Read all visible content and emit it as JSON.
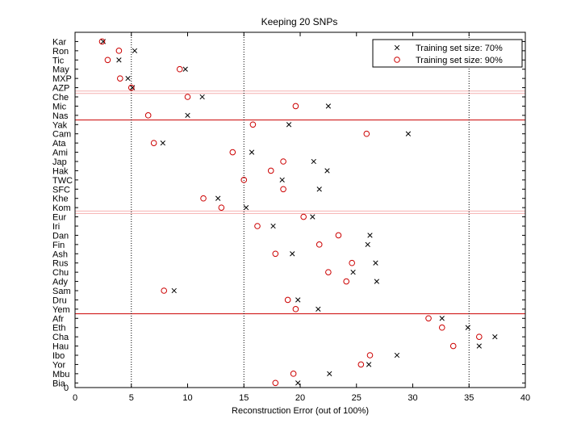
{
  "chart_data": {
    "type": "scatter",
    "title": "Keeping 20 SNPs",
    "xlabel": "Reconstruction Error (out of 100%)",
    "ylabel": "",
    "xlim": [
      0,
      40
    ],
    "xticks": [
      "0",
      "5",
      "10",
      "15",
      "20",
      "25",
      "30",
      "35",
      "40"
    ],
    "ytick_bottom": "0",
    "categories": [
      "Kar",
      "Ron",
      "Tic",
      "May",
      "MXP",
      "AZP",
      "Che",
      "Mic",
      "Nas",
      "Yak",
      "Cam",
      "Ata",
      "Ami",
      "Jap",
      "Hak",
      "TWC",
      "SFC",
      "Khe",
      "Kom",
      "Eur",
      "Iri",
      "Dan",
      "Fin",
      "Ash",
      "Rus",
      "Chu",
      "Ady",
      "Sam",
      "Dru",
      "Yem",
      "Afr",
      "Eth",
      "Cha",
      "Hau",
      "Ibo",
      "Yor",
      "Mbu",
      "Bia"
    ],
    "series": [
      {
        "name": "Training set size: 70%",
        "marker": "x",
        "values": [
          2.5,
          5.3,
          3.9,
          9.8,
          4.7,
          5.1,
          11.3,
          22.5,
          10.0,
          19.0,
          29.6,
          7.8,
          15.7,
          21.2,
          22.4,
          18.4,
          21.7,
          12.7,
          15.2,
          21.1,
          17.6,
          26.2,
          26.0,
          19.3,
          26.7,
          24.7,
          26.8,
          8.8,
          19.8,
          21.6,
          32.6,
          34.9,
          37.3,
          35.9,
          28.6,
          26.1,
          22.6,
          19.8
        ]
      },
      {
        "name": "Training set size: 90%",
        "marker": "o",
        "values": [
          2.4,
          3.9,
          2.9,
          9.3,
          4.0,
          5.0,
          10.0,
          19.6,
          6.5,
          15.8,
          25.9,
          7.0,
          14.0,
          18.5,
          17.4,
          15.0,
          18.5,
          11.4,
          13.0,
          20.3,
          16.2,
          23.4,
          21.7,
          17.8,
          24.6,
          22.5,
          24.1,
          7.9,
          18.9,
          19.6,
          31.4,
          32.6,
          35.9,
          33.6,
          26.2,
          25.4,
          19.4,
          17.8
        ]
      }
    ],
    "vlines": [
      5,
      15,
      35
    ],
    "separators_after": [
      "Nas",
      "Yem"
    ],
    "highlight_after": [
      "AZP",
      "Kom"
    ],
    "legend_position": "top-right",
    "grid": false,
    "colors": {
      "series_1": "#000000",
      "series_2": "#cc0000",
      "separator": "#cc0000",
      "highlight": "#f4b0b0"
    }
  }
}
